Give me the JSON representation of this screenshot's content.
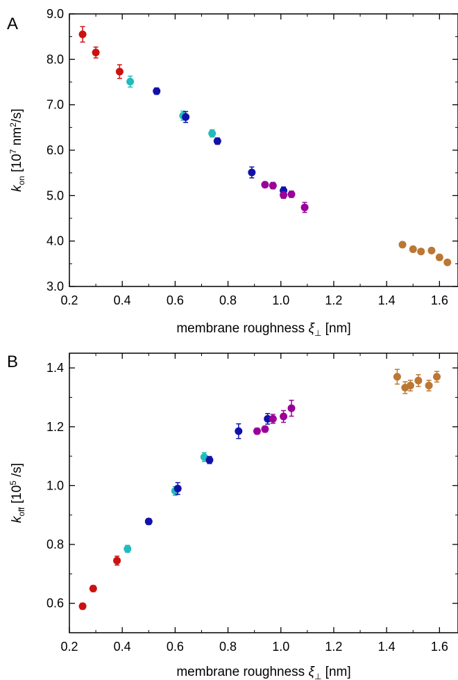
{
  "chart_data": [
    {
      "type": "scatter",
      "panel_label": "A",
      "xlabel": "membrane roughness ξ⊥ [nm]",
      "xlabel_main": "membrane roughness ",
      "xlabel_symbol": "ξ",
      "xlabel_sub": "⊥",
      "xlabel_unit": " [nm]",
      "ylabel": "k_on [10^7 nm^2/s]",
      "ylabel_symbol": "k",
      "ylabel_sub": "on",
      "ylabel_pre": " [10",
      "ylabel_exp1": "7",
      "ylabel_mid": " nm",
      "ylabel_exp2": "2",
      "ylabel_post": "/s]",
      "xlim": [
        0.2,
        1.67
      ],
      "ylim": [
        3.0,
        9.0
      ],
      "xticks": [
        0.2,
        0.4,
        0.6,
        0.8,
        1.0,
        1.2,
        1.4,
        1.6
      ],
      "xtick_labels": [
        "0.2",
        "0.4",
        "0.6",
        "0.8",
        "1.0",
        "1.2",
        "1.4",
        "1.6"
      ],
      "yticks": [
        3.0,
        4.0,
        5.0,
        6.0,
        7.0,
        8.0,
        9.0
      ],
      "ytick_labels": [
        "3.0",
        "4.0",
        "5.0",
        "6.0",
        "7.0",
        "8.0",
        "9.0"
      ],
      "grid": false,
      "series": [
        {
          "color": "#cc1111",
          "points": [
            [
              0.25,
              8.55,
              0.17
            ],
            [
              0.3,
              8.15,
              0.12
            ],
            [
              0.39,
              7.73,
              0.15
            ]
          ]
        },
        {
          "color": "#22bbbb",
          "points": [
            [
              0.43,
              7.51,
              0.12
            ],
            [
              0.63,
              6.76,
              0.1
            ],
            [
              0.74,
              6.37,
              0.08
            ]
          ]
        },
        {
          "color": "#1111aa",
          "points": [
            [
              0.53,
              7.3,
              0.07
            ],
            [
              0.64,
              6.73,
              0.12
            ],
            [
              0.76,
              6.2,
              0.07
            ],
            [
              0.89,
              5.51,
              0.12
            ],
            [
              1.01,
              5.11,
              0.08
            ]
          ]
        },
        {
          "color": "#990099",
          "points": [
            [
              0.94,
              5.24,
              0.06
            ],
            [
              0.97,
              5.22,
              0.07
            ],
            [
              1.01,
              5.01,
              0.07
            ],
            [
              1.04,
              5.03,
              0.07
            ],
            [
              1.09,
              4.74,
              0.11
            ]
          ]
        },
        {
          "color": "#bb7733",
          "points": [
            [
              1.46,
              3.92,
              0.06
            ],
            [
              1.5,
              3.82,
              0.06
            ],
            [
              1.53,
              3.77,
              0.05
            ],
            [
              1.57,
              3.79,
              0.05
            ],
            [
              1.6,
              3.64,
              0.06
            ],
            [
              1.63,
              3.53,
              0.05
            ]
          ]
        }
      ]
    },
    {
      "type": "scatter",
      "panel_label": "B",
      "xlabel": "membrane roughness ξ⊥ [nm]",
      "xlabel_main": "membrane roughness ",
      "xlabel_symbol": "ξ",
      "xlabel_sub": "⊥",
      "xlabel_unit": " [nm]",
      "ylabel": "k_off [10^5 /s]",
      "ylabel_symbol": "k",
      "ylabel_sub": "off",
      "ylabel_pre": " [10",
      "ylabel_exp1": "5",
      "ylabel_post": " /s]",
      "xlim": [
        0.2,
        1.67
      ],
      "ylim": [
        0.5,
        1.45
      ],
      "xticks": [
        0.2,
        0.4,
        0.6,
        0.8,
        1.0,
        1.2,
        1.4,
        1.6
      ],
      "xtick_labels": [
        "0.2",
        "0.4",
        "0.6",
        "0.8",
        "1.0",
        "1.2",
        "1.4",
        "1.6"
      ],
      "yticks": [
        0.6,
        0.8,
        1.0,
        1.2,
        1.4
      ],
      "ytick_labels": [
        "0.6",
        "0.8",
        "1.0",
        "1.2",
        "1.4"
      ],
      "grid": false,
      "series": [
        {
          "color": "#cc1111",
          "points": [
            [
              0.25,
              0.59,
              0.01
            ],
            [
              0.29,
              0.65,
              0.01
            ],
            [
              0.38,
              0.745,
              0.015
            ]
          ]
        },
        {
          "color": "#22bbbb",
          "points": [
            [
              0.42,
              0.785,
              0.012
            ],
            [
              0.6,
              0.982,
              0.015
            ],
            [
              0.71,
              1.097,
              0.015
            ]
          ]
        },
        {
          "color": "#1111aa",
          "points": [
            [
              0.5,
              0.878,
              0.01
            ],
            [
              0.61,
              0.99,
              0.02
            ],
            [
              0.73,
              1.087,
              0.012
            ],
            [
              0.84,
              1.185,
              0.025
            ],
            [
              0.95,
              1.227,
              0.018
            ]
          ]
        },
        {
          "color": "#990099",
          "points": [
            [
              0.91,
              1.185,
              0.01
            ],
            [
              0.94,
              1.192,
              0.01
            ],
            [
              0.97,
              1.227,
              0.015
            ],
            [
              1.01,
              1.235,
              0.02
            ],
            [
              1.04,
              1.263,
              0.027
            ]
          ]
        },
        {
          "color": "#bb7733",
          "points": [
            [
              1.44,
              1.37,
              0.025
            ],
            [
              1.47,
              1.333,
              0.02
            ],
            [
              1.49,
              1.34,
              0.018
            ],
            [
              1.52,
              1.357,
              0.02
            ],
            [
              1.56,
              1.34,
              0.018
            ],
            [
              1.59,
              1.37,
              0.018
            ]
          ]
        }
      ]
    }
  ]
}
